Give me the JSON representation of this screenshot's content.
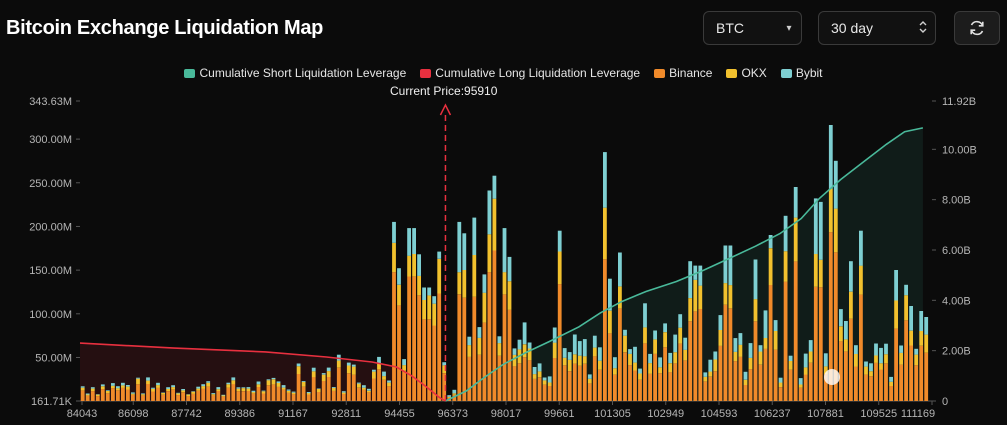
{
  "page": {
    "title": "Bitcoin Exchange Liquidation Map"
  },
  "controls": {
    "coin_value": "BTC",
    "range_value": "30 day",
    "caret_down": "▾",
    "caret_updown": "⌃⌄",
    "refresh_icon": "refresh-icon"
  },
  "colors": {
    "background": "#0b0b0b",
    "short_line": "#49b99a",
    "long_line": "#e8303f",
    "binance": "#f08a2a",
    "okx": "#f2c12e",
    "bybit": "#7ecfd2"
  },
  "chart_data": {
    "type": "bar",
    "title": "Bitcoin Exchange Liquidation Map",
    "current_price_label": "Current Price:95910",
    "current_price": 95910,
    "legend": [
      {
        "name": "Cumulative Short Liquidation Leverage",
        "color": "#49b99a"
      },
      {
        "name": "Cumulative Long Liquidation Leverage",
        "color": "#e8303f"
      },
      {
        "name": "Binance",
        "color": "#f08a2a"
      },
      {
        "name": "OKX",
        "color": "#f2c12e"
      },
      {
        "name": "Bybit",
        "color": "#7ecfd2"
      }
    ],
    "x_tick_labels": [
      "84043",
      "86098",
      "87742",
      "89386",
      "91167",
      "92811",
      "94455",
      "96373",
      "98017",
      "99661",
      "101305",
      "102949",
      "104593",
      "106237",
      "107881",
      "109525",
      "111169"
    ],
    "y_left_tick_labels": [
      "161.71K",
      "50.00M",
      "100.00M",
      "150.00M",
      "200.00M",
      "250.00M",
      "300.00M",
      "343.63M"
    ],
    "y_left_range": [
      0.16171,
      343.63
    ],
    "y_right_tick_labels": [
      "0",
      "2.00B",
      "4.00B",
      "6.00B",
      "8.00B",
      "10.00B",
      "11.92B"
    ],
    "y_right_range": [
      0,
      11.92
    ],
    "x_range": [
      83900,
      111900
    ],
    "bar_bin_width": 165,
    "long_cumulative_points_B": [
      [
        83900,
        2.3
      ],
      [
        87000,
        2.1
      ],
      [
        90000,
        1.95
      ],
      [
        92000,
        1.75
      ],
      [
        93500,
        1.55
      ],
      [
        94300,
        1.35
      ],
      [
        94800,
        1.0
      ],
      [
        95300,
        0.55
      ],
      [
        95700,
        0.15
      ],
      [
        95910,
        0.0
      ]
    ],
    "short_cumulative_points_B": [
      [
        95910,
        0.0
      ],
      [
        96600,
        0.4
      ],
      [
        97200,
        0.95
      ],
      [
        97800,
        1.45
      ],
      [
        98600,
        1.95
      ],
      [
        99300,
        2.35
      ],
      [
        100300,
        2.95
      ],
      [
        101000,
        3.5
      ],
      [
        101700,
        3.95
      ],
      [
        102500,
        4.35
      ],
      [
        103500,
        4.75
      ],
      [
        104400,
        5.2
      ],
      [
        105300,
        5.7
      ],
      [
        106100,
        6.15
      ],
      [
        106900,
        6.65
      ],
      [
        107600,
        7.25
      ],
      [
        108200,
        8.05
      ],
      [
        108900,
        8.8
      ],
      [
        109700,
        9.55
      ],
      [
        110400,
        10.2
      ],
      [
        111000,
        10.7
      ],
      [
        111600,
        10.85
      ]
    ],
    "spike_peaks_M": [
      [
        94300,
        205
      ],
      [
        94430,
        152
      ],
      [
        94800,
        198
      ],
      [
        95030,
        168
      ],
      [
        95300,
        130
      ],
      [
        95550,
        120
      ],
      [
        95710,
        171
      ],
      [
        96300,
        205
      ],
      [
        96500,
        192
      ],
      [
        96870,
        210
      ],
      [
        97200,
        145
      ],
      [
        97390,
        241
      ],
      [
        97550,
        258
      ],
      [
        97890,
        198
      ],
      [
        98000,
        165
      ],
      [
        99700,
        195
      ],
      [
        101200,
        285
      ],
      [
        101350,
        140
      ],
      [
        101700,
        170
      ],
      [
        103950,
        160
      ],
      [
        104200,
        155
      ],
      [
        105200,
        178
      ],
      [
        106050,
        162
      ],
      [
        106600,
        190
      ],
      [
        107050,
        212
      ],
      [
        107400,
        245
      ],
      [
        108150,
        232
      ],
      [
        108300,
        228
      ],
      [
        108600,
        316
      ],
      [
        108800,
        275
      ],
      [
        109250,
        160
      ],
      [
        109500,
        195
      ],
      [
        110650,
        150
      ],
      [
        111050,
        133
      ]
    ]
  }
}
